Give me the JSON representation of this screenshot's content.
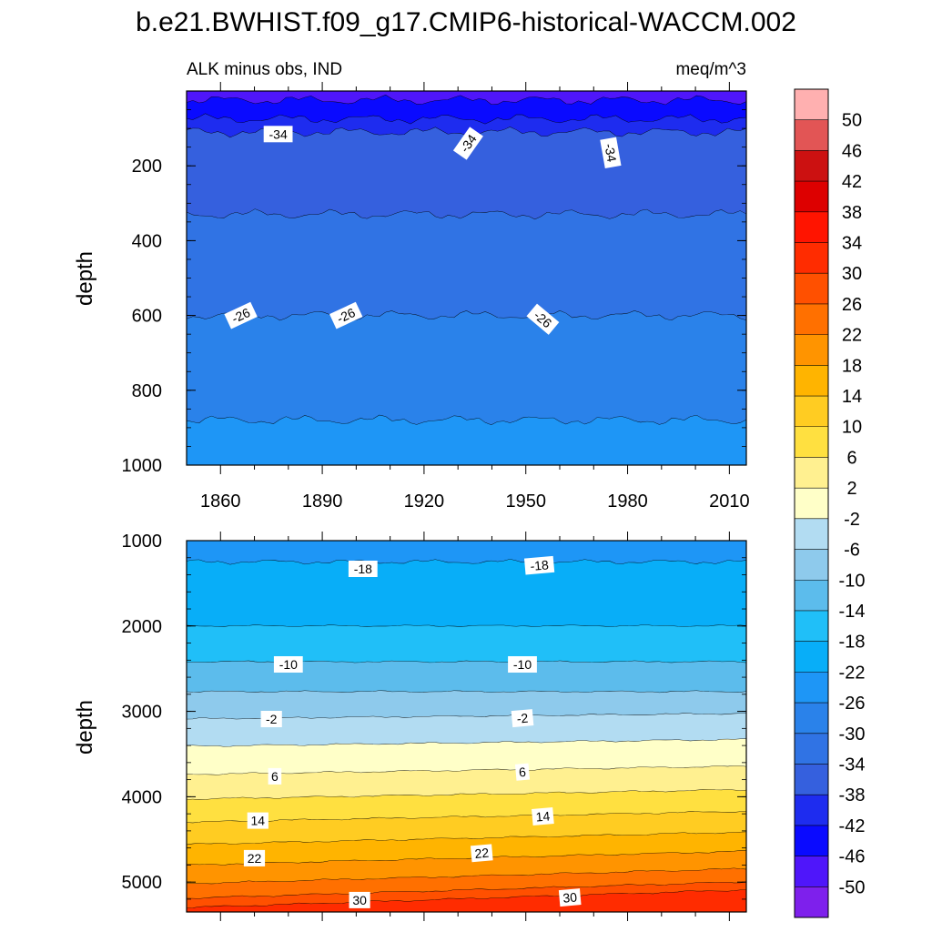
{
  "title": "b.e21.BWHIST.f09_g17.CMIP6-historical-WACCM.002",
  "chart_data": [
    {
      "type": "contour",
      "panel": "top",
      "left_label": "ALK minus obs, IND",
      "right_label": "meq/m^3",
      "xlabel": "",
      "ylabel": "depth",
      "xlim": [
        1850,
        2015
      ],
      "ylim": [
        1000,
        0
      ],
      "xticks": [
        1860,
        1890,
        1920,
        1950,
        1980,
        2010
      ],
      "yticks": [
        200,
        400,
        600,
        800,
        1000
      ],
      "bands": [
        {
          "max_depth": 25,
          "value": -46
        },
        {
          "max_depth": 75,
          "value": -42
        },
        {
          "max_depth": 110,
          "value": -38
        },
        {
          "max_depth": 330,
          "value": -34
        },
        {
          "max_depth": 600,
          "value": -30
        },
        {
          "max_depth": 880,
          "value": -26
        },
        {
          "max_depth": 1000,
          "value": -22
        }
      ],
      "contour_labels": [
        {
          "text": "-34",
          "year": 1877,
          "depth": 115
        },
        {
          "text": "-34",
          "year": 1933,
          "depth": 140
        },
        {
          "text": "-34",
          "year": 1975,
          "depth": 165
        },
        {
          "text": "-26",
          "year": 1866,
          "depth": 600
        },
        {
          "text": "-26",
          "year": 1897,
          "depth": 600
        },
        {
          "text": "-26",
          "year": 1955,
          "depth": 610
        }
      ]
    },
    {
      "type": "contour",
      "panel": "bottom",
      "xlabel": "",
      "ylabel": "depth",
      "xlim": [
        1850,
        2015
      ],
      "ylim": [
        5350,
        1000
      ],
      "yticks": [
        1000,
        2000,
        3000,
        4000,
        5000
      ],
      "bands": [
        {
          "max_depth": 1250,
          "value": -22
        },
        {
          "max_depth": 2000,
          "value": -18
        },
        {
          "max_depth": 2420,
          "value": -14
        },
        {
          "max_depth": 2770,
          "value": -10
        },
        {
          "max_depth": 3090,
          "value": -6
        },
        {
          "max_depth": 3410,
          "value": -2
        },
        {
          "max_depth": 3740,
          "value": 2
        },
        {
          "max_depth": 4030,
          "value": 6
        },
        {
          "max_depth": 4300,
          "value": 10
        },
        {
          "max_depth": 4560,
          "value": 14
        },
        {
          "max_depth": 4800,
          "value": 18
        },
        {
          "max_depth": 5020,
          "value": 22
        },
        {
          "max_depth": 5190,
          "value": 26
        },
        {
          "max_depth": 5300,
          "value": 30
        },
        {
          "max_depth": 5350,
          "value": 34
        }
      ],
      "contour_labels": [
        {
          "text": "-18",
          "year": 1902,
          "depth": 1330
        },
        {
          "text": "-18",
          "year": 1954,
          "depth": 1290
        },
        {
          "text": "-10",
          "year": 1880,
          "depth": 2450
        },
        {
          "text": "-10",
          "year": 1949,
          "depth": 2450
        },
        {
          "text": "-2",
          "year": 1875,
          "depth": 3090
        },
        {
          "text": "-2",
          "year": 1949,
          "depth": 3080
        },
        {
          "text": "6",
          "year": 1876,
          "depth": 3760
        },
        {
          "text": "6",
          "year": 1949,
          "depth": 3710
        },
        {
          "text": "14",
          "year": 1871,
          "depth": 4280
        },
        {
          "text": "14",
          "year": 1955,
          "depth": 4230
        },
        {
          "text": "22",
          "year": 1870,
          "depth": 4720
        },
        {
          "text": "22",
          "year": 1937,
          "depth": 4660
        },
        {
          "text": "30",
          "year": 1901,
          "depth": 5210
        },
        {
          "text": "30",
          "year": 1963,
          "depth": 5180
        }
      ]
    }
  ],
  "colorbar": {
    "labels": [
      "50",
      "46",
      "42",
      "38",
      "34",
      "30",
      "26",
      "22",
      "18",
      "14",
      "10",
      "6",
      "2",
      "-2",
      "-6",
      "-10",
      "-14",
      "-18",
      "-22",
      "-26",
      "-30",
      "-34",
      "-38",
      "-42",
      "-46",
      "-50"
    ],
    "colors": [
      "#ffb0b0",
      "#e25555",
      "#cc1111",
      "#dd0000",
      "#ff1400",
      "#ff2c00",
      "#ff5000",
      "#ff7000",
      "#ff9400",
      "#ffb400",
      "#ffcc22",
      "#ffe040",
      "#fff090",
      "#ffffc8",
      "#b2dcf2",
      "#8ecaec",
      "#5cbcec",
      "#20bff8",
      "#08aef8",
      "#1e96f6",
      "#2a82ea",
      "#3073e4",
      "#3560de",
      "#1e2cef",
      "#0a0aff",
      "#4f16fa",
      "#7e20ec"
    ]
  }
}
